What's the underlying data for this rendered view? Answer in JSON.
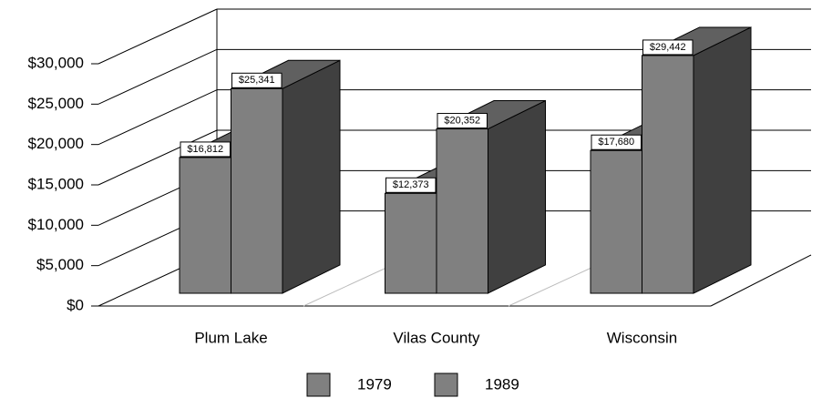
{
  "chart_data": {
    "type": "bar3d",
    "categories": [
      "Plum Lake",
      "Vilas County",
      "Wisconsin"
    ],
    "series": [
      {
        "name": "1979",
        "color": "#808080",
        "values": [
          16812,
          12373,
          17680
        ],
        "value_labels": [
          "$16,812",
          "$12,373",
          "$17,680"
        ]
      },
      {
        "name": "1989",
        "color": "#808080",
        "values": [
          25341,
          20352,
          29442
        ],
        "value_labels": [
          "$25,341",
          "$20,352",
          "$29,442"
        ]
      }
    ],
    "ylim": [
      0,
      30000
    ],
    "yticks": [
      {
        "value": 0,
        "label": "$0"
      },
      {
        "value": 5000,
        "label": "$5,000"
      },
      {
        "value": 10000,
        "label": "$10,000"
      },
      {
        "value": 15000,
        "label": "$15,000"
      },
      {
        "value": 20000,
        "label": "$20,000"
      },
      {
        "value": 25000,
        "label": "$25,000"
      },
      {
        "value": 30000,
        "label": "$30,000"
      }
    ],
    "grid": true
  }
}
